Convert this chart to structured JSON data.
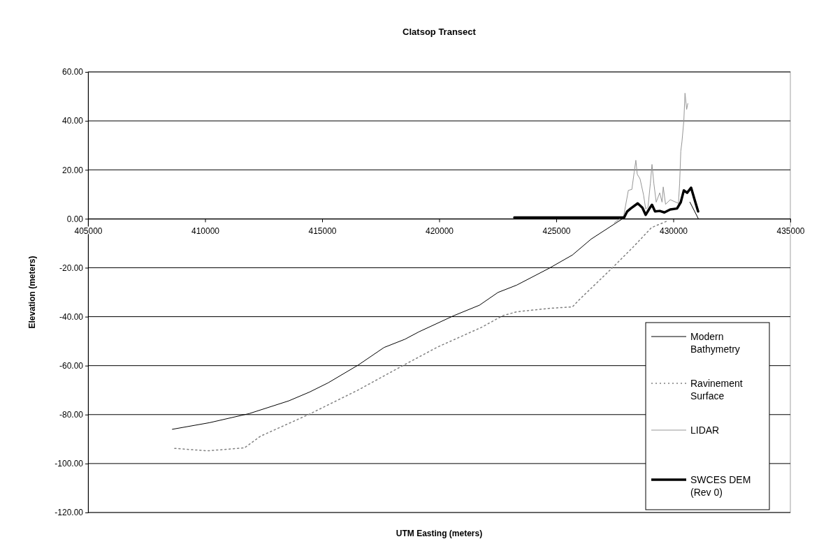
{
  "chart_data": {
    "type": "line",
    "title": "Clatsop Transect",
    "xlabel": "UTM Easting (meters)",
    "ylabel": "Elevation (meters)",
    "xlim": [
      405000,
      435000
    ],
    "xticks": [
      405000,
      410000,
      415000,
      420000,
      425000,
      430000,
      435000
    ],
    "ylim": [
      -120,
      60
    ],
    "yticks": [
      {
        "value": -120,
        "label": "-120.00"
      },
      {
        "value": -100,
        "label": "-100.00"
      },
      {
        "value": -80,
        "label": "-80.00"
      },
      {
        "value": -60,
        "label": "-60.00"
      },
      {
        "value": -40,
        "label": "-40.00"
      },
      {
        "value": -20,
        "label": "-20.00"
      },
      {
        "value": 0,
        "label": "0.00"
      },
      {
        "value": 20,
        "label": "20.00"
      },
      {
        "value": 40,
        "label": "40.00"
      },
      {
        "value": 60,
        "label": "60.00"
      }
    ],
    "grid": "y",
    "legend": "bottom right",
    "marker": "none",
    "series": [
      {
        "name": "Modern Bathymetry",
        "color": "#000000",
        "line_style": "solid",
        "x": [
          408600,
          410190,
          411880,
          413570,
          414460,
          415260,
          416550,
          417640,
          418540,
          419130,
          420620,
          421720,
          422510,
          423310,
          424700,
          425690,
          426490,
          427780,
          427900,
          429000,
          430710,
          431060
        ],
        "values": [
          -86.0,
          -83.3,
          -79.6,
          -74.4,
          -70.8,
          -67.0,
          -59.7,
          -52.6,
          -49.2,
          -46.2,
          -39.6,
          -35.3,
          -30.1,
          -27.1,
          -20.2,
          -14.8,
          -8.3,
          -0.3,
          0.5,
          null,
          6.8,
          0.2
        ]
      },
      {
        "name": "Ravinement Surface",
        "color": "#808080",
        "line_style": "dotted",
        "x": [
          408700,
          410090,
          411680,
          412370,
          414460,
          416550,
          418540,
          419930,
          421820,
          422710,
          423310,
          424700,
          425690,
          425990,
          427380,
          428280,
          429070,
          429770
        ],
        "values": [
          -93.8,
          -94.8,
          -93.6,
          -88.8,
          -79.8,
          -69.9,
          -59.5,
          -52.4,
          -44.3,
          -39.6,
          -38.0,
          -36.6,
          -36.0,
          -33.0,
          -20.2,
          -11.6,
          -3.6,
          -0.8
        ]
      },
      {
        "name": "LIDAR",
        "color": "#969696",
        "line_style": "solid",
        "x": [
          427480,
          427880,
          428080,
          428230,
          428330,
          428400,
          428460,
          428580,
          428730,
          428820,
          428920,
          429020,
          429090,
          429170,
          429270,
          429420,
          429520,
          429570,
          429670,
          429870,
          430220,
          430270,
          430320,
          430370,
          430450,
          430500,
          430570,
          430620
        ],
        "values": [
          -1.6,
          1.1,
          11.6,
          12.0,
          19.1,
          23.9,
          18.2,
          16.3,
          9.7,
          4.0,
          4.9,
          14.4,
          22.2,
          14.4,
          6.8,
          10.6,
          6.8,
          13.0,
          5.9,
          7.8,
          6.3,
          14.4,
          27.6,
          31.5,
          40.0,
          51.3,
          44.7,
          47.1
        ]
      },
      {
        "name": "SWCES DEM (Rev 0)",
        "color": "#000000",
        "line_style": "solid",
        "x": [
          423210,
          427900,
          428030,
          428180,
          428480,
          428680,
          428820,
          428970,
          429090,
          429220,
          429420,
          429620,
          429870,
          430160,
          430320,
          430450,
          430590,
          430760,
          430910,
          431060
        ],
        "values": [
          0.5,
          0.5,
          3.0,
          4.2,
          6.3,
          4.5,
          1.6,
          4.0,
          5.7,
          3.0,
          3.2,
          2.6,
          3.8,
          4.2,
          6.8,
          11.6,
          10.6,
          12.7,
          7.8,
          3.0
        ]
      }
    ]
  }
}
